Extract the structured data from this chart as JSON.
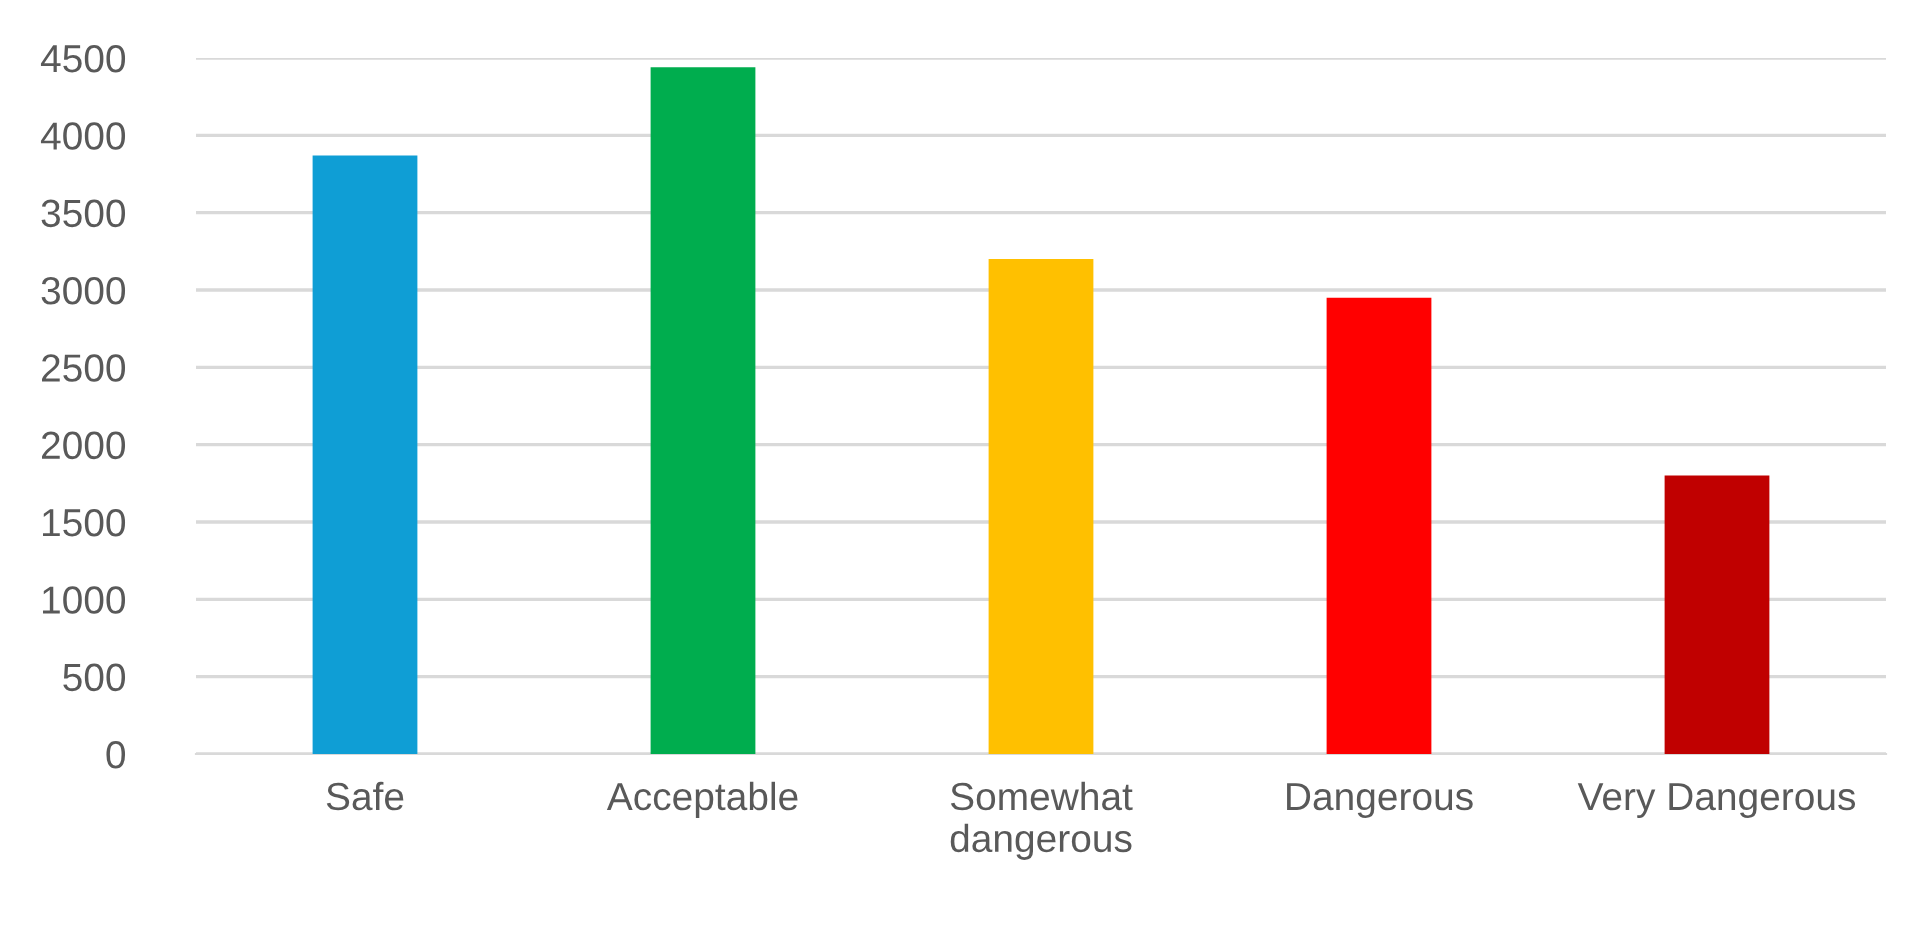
{
  "chart_data": {
    "type": "bar",
    "categories": [
      "Safe",
      "Acceptable",
      "Somewhat\ndangerous",
      "Dangerous",
      "Very Dangerous"
    ],
    "values": [
      3870,
      4440,
      3200,
      2950,
      1800
    ],
    "colors": [
      "#0f9ed5",
      "#00ad4e",
      "#ffc000",
      "#ff0000",
      "#c00000"
    ],
    "ylim": [
      0,
      4500
    ],
    "yticks": [
      0,
      500,
      1000,
      1500,
      2000,
      2500,
      3000,
      3500,
      4000,
      4500
    ],
    "grid": "y"
  }
}
